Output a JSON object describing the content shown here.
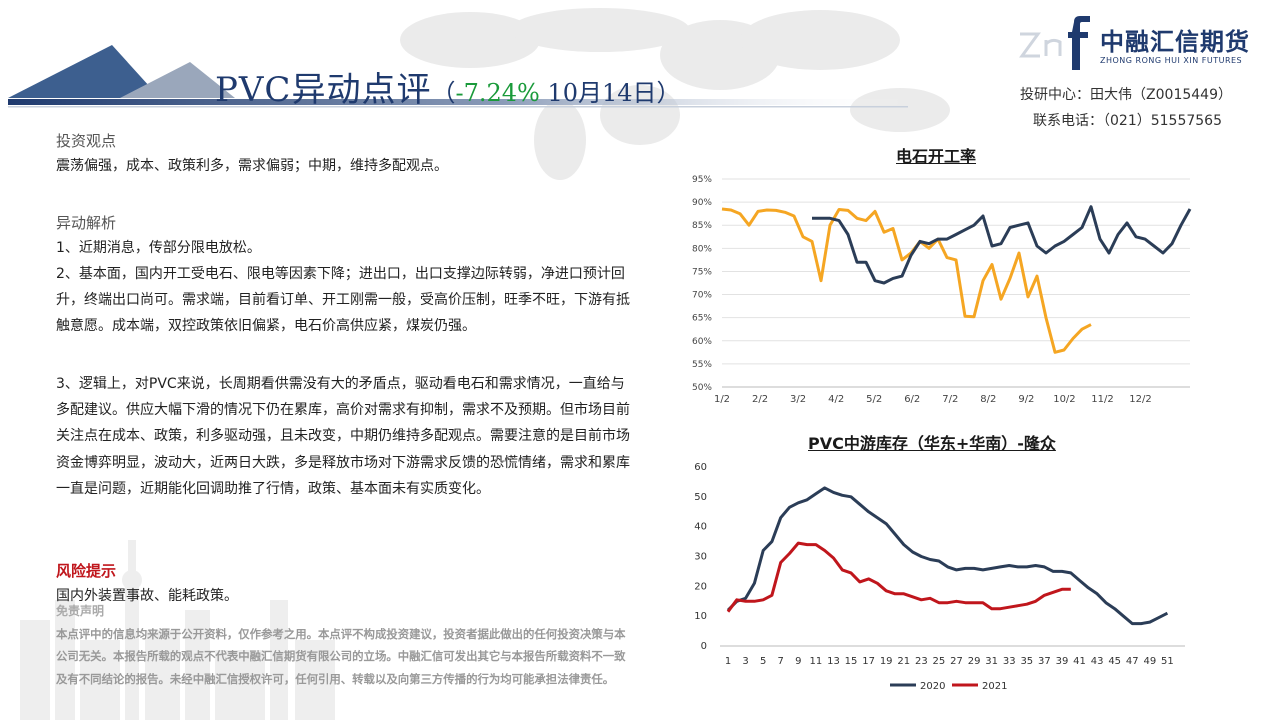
{
  "header": {
    "title_main": "PVC异动点评",
    "title_open": "（",
    "title_change": "-7.24%",
    "title_date": " 10月14日）"
  },
  "logo": {
    "cn": "中融汇信期货",
    "en": "ZHONG RONG HUI XIN FUTURES"
  },
  "contact": {
    "research": "投研中心：田大伟（Z0015449）",
    "phone": "联系电话：（021）51557565"
  },
  "sections": {
    "view_title": "投资观点",
    "view_text": "震荡偏强，成本、政策利多，需求偏弱；中期，维持多配观点。",
    "analysis_title": "异动解析",
    "points": [
      "1、近期消息，传部分限电放松。",
      "2、基本面，国内开工受电石、限电等因素下降；进出口，出口支撑边际转弱，净进口预计回升，终端出口尚可。需求端，目前看订单、开工刚需一般，受高价压制，旺季不旺，下游有抵触意愿。成本端，双控政策依旧偏紧，电石价高供应紧，煤炭仍强。",
      "3、逻辑上，对PVC来说，长周期看供需没有大的矛盾点，驱动看电石和需求情况，一直给与多配建议。供应大幅下滑的情况下仍在累库，高价对需求有抑制，需求不及预期。但市场目前关注点在成本、政策，利多驱动强，且未改变，中期仍维持多配观点。需要注意的是目前市场资金博弈明显，波动大，近两日大跌，多是释放市场对下游需求反馈的恐慌情绪，需求和累库一直是问题，近期能化回调助推了行情，政策、基本面未有实质变化。"
    ],
    "risk_title": "风险提示",
    "risk_text": "国内外装置事故、能耗政策。",
    "disclaimer_title": "免责声明",
    "disclaimer_text": "本点评中的信息均来源于公开资料，仅作参考之用。本点评不构成投资建议，投资者据此做出的任何投资决策与本公司无关。本报告所载的观点不代表中融汇信期货有限公司的立场。中融汇信可发出其它与本报告所载资料不一致及有不同结论的报告。未经中融汇信授权许可，任何引用、转载以及向第三方传播的行为均可能承担法律责任。"
  },
  "colors": {
    "navy": "#1f3a6e",
    "series_dark": "#2b3d57",
    "series_orange": "#f5a623",
    "series_red": "#c0161c",
    "green": "#1a9a3a"
  },
  "chart_data": [
    {
      "type": "line",
      "title": "电石开工率",
      "x_ticks": [
        "1/2",
        "2/2",
        "3/2",
        "4/2",
        "5/2",
        "6/2",
        "7/2",
        "8/2",
        "9/2",
        "10/2",
        "11/2",
        "12/2"
      ],
      "y_ticks": [
        "50%",
        "55%",
        "60%",
        "65%",
        "70%",
        "75%",
        "80%",
        "85%",
        "90%",
        "95%"
      ],
      "ylim": [
        50,
        95
      ],
      "grid": true,
      "legend": "none",
      "series": [
        {
          "color": "#f5a623",
          "points": [
            [
              0,
              88.5
            ],
            [
              1,
              88.3
            ],
            [
              2,
              87.5
            ],
            [
              3,
              85
            ],
            [
              4,
              88
            ],
            [
              5,
              88.3
            ],
            [
              6,
              88.2
            ],
            [
              7,
              87.8
            ],
            [
              8,
              87
            ],
            [
              9,
              82.5
            ],
            [
              10,
              81.5
            ],
            [
              11,
              73
            ],
            [
              12,
              85
            ],
            [
              13,
              88.4
            ],
            [
              14,
              88.2
            ],
            [
              15,
              86.5
            ],
            [
              16,
              86
            ],
            [
              17,
              88
            ],
            [
              18,
              83.5
            ],
            [
              19,
              84.3
            ],
            [
              20,
              77.5
            ],
            [
              21,
              79
            ],
            [
              22,
              81.5
            ],
            [
              23,
              80
            ],
            [
              24,
              82
            ],
            [
              25,
              78
            ],
            [
              26,
              77.5
            ],
            [
              27,
              65.3
            ],
            [
              28,
              65.2
            ],
            [
              29,
              73
            ],
            [
              30,
              76.5
            ],
            [
              31,
              69
            ],
            [
              32,
              73.5
            ],
            [
              33,
              79
            ],
            [
              34,
              69.5
            ],
            [
              35,
              74
            ],
            [
              36,
              65
            ],
            [
              37,
              57.5
            ],
            [
              38,
              58
            ],
            [
              39,
              60.5
            ],
            [
              40,
              62.5
            ],
            [
              41,
              63.5
            ]
          ]
        },
        {
          "color": "#2b3d57",
          "points": [
            [
              10,
              86.5
            ],
            [
              11,
              86.5
            ],
            [
              12,
              86.5
            ],
            [
              13,
              86
            ],
            [
              14,
              83
            ],
            [
              15,
              77
            ],
            [
              16,
              77
            ],
            [
              17,
              73
            ],
            [
              18,
              72.5
            ],
            [
              19,
              73.5
            ],
            [
              20,
              74
            ],
            [
              21,
              78.5
            ],
            [
              22,
              81.5
            ],
            [
              23,
              81
            ],
            [
              24,
              82
            ],
            [
              25,
              82
            ],
            [
              26,
              83
            ],
            [
              27,
              84
            ],
            [
              28,
              85
            ],
            [
              29,
              87
            ],
            [
              30,
              80.5
            ],
            [
              31,
              81
            ],
            [
              32,
              84.5
            ],
            [
              33,
              85
            ],
            [
              34,
              85.5
            ],
            [
              35,
              80.5
            ],
            [
              36,
              79
            ],
            [
              37,
              80.5
            ],
            [
              38,
              81.5
            ],
            [
              39,
              83
            ],
            [
              40,
              84.5
            ],
            [
              41,
              89
            ],
            [
              42,
              82
            ],
            [
              43,
              79
            ],
            [
              44,
              83
            ],
            [
              45,
              85.5
            ],
            [
              46,
              82.5
            ],
            [
              47,
              82
            ],
            [
              48,
              80.5
            ],
            [
              49,
              79
            ],
            [
              50,
              81
            ],
            [
              51,
              85
            ],
            [
              52,
              88.5
            ]
          ]
        }
      ]
    },
    {
      "type": "line",
      "title": "PVC中游库存（华东+华南）-隆众",
      "x_ticks": [
        "1",
        "3",
        "5",
        "7",
        "9",
        "11",
        "13",
        "15",
        "17",
        "19",
        "21",
        "23",
        "25",
        "27",
        "29",
        "31",
        "33",
        "35",
        "37",
        "39",
        "41",
        "43",
        "45",
        "47",
        "49",
        "51"
      ],
      "y_ticks": [
        "0",
        "10",
        "20",
        "30",
        "40",
        "50",
        "60"
      ],
      "ylim": [
        0,
        60
      ],
      "grid": false,
      "legend": "bottom",
      "series": [
        {
          "name": "2020",
          "color": "#2b3d57",
          "points": [
            [
              1,
              12
            ],
            [
              2,
              15
            ],
            [
              3,
              16
            ],
            [
              4,
              21
            ],
            [
              5,
              32
            ],
            [
              6,
              35
            ],
            [
              7,
              43
            ],
            [
              8,
              46.5
            ],
            [
              9,
              48
            ],
            [
              10,
              49
            ],
            [
              11,
              51
            ],
            [
              12,
              53
            ],
            [
              13,
              51.5
            ],
            [
              14,
              50.5
            ],
            [
              15,
              50
            ],
            [
              16,
              47.5
            ],
            [
              17,
              45
            ],
            [
              18,
              43
            ],
            [
              19,
              41
            ],
            [
              20,
              37.5
            ],
            [
              21,
              34
            ],
            [
              22,
              31.5
            ],
            [
              23,
              30
            ],
            [
              24,
              29
            ],
            [
              25,
              28.5
            ],
            [
              26,
              26.5
            ],
            [
              27,
              25.5
            ],
            [
              28,
              26
            ],
            [
              29,
              26
            ],
            [
              30,
              25.5
            ],
            [
              31,
              26
            ],
            [
              32,
              26.5
            ],
            [
              33,
              27
            ],
            [
              34,
              26.5
            ],
            [
              35,
              26.5
            ],
            [
              36,
              27
            ],
            [
              37,
              26.5
            ],
            [
              38,
              25
            ],
            [
              39,
              25
            ],
            [
              40,
              24.5
            ],
            [
              41,
              22
            ],
            [
              42,
              19.5
            ],
            [
              43,
              17.5
            ],
            [
              44,
              14.5
            ],
            [
              45,
              12.5
            ],
            [
              46,
              10
            ],
            [
              47,
              7.5
            ],
            [
              48,
              7.5
            ],
            [
              49,
              8
            ],
            [
              50,
              9.5
            ],
            [
              51,
              11
            ]
          ]
        },
        {
          "name": "2021",
          "color": "#c0161c",
          "points": [
            [
              1,
              11.5
            ],
            [
              2,
              15.5
            ],
            [
              3,
              15
            ],
            [
              4,
              15
            ],
            [
              5,
              15.5
            ],
            [
              6,
              17
            ],
            [
              7,
              28
            ],
            [
              8,
              31
            ],
            [
              9,
              34.5
            ],
            [
              10,
              34
            ],
            [
              11,
              34
            ],
            [
              12,
              32
            ],
            [
              13,
              29.5
            ],
            [
              14,
              25.5
            ],
            [
              15,
              24.5
            ],
            [
              16,
              21.5
            ],
            [
              17,
              22.5
            ],
            [
              18,
              21
            ],
            [
              19,
              18.5
            ],
            [
              20,
              17.5
            ],
            [
              21,
              17.5
            ],
            [
              22,
              16.5
            ],
            [
              23,
              15.5
            ],
            [
              24,
              16
            ],
            [
              25,
              14.5
            ],
            [
              26,
              14.5
            ],
            [
              27,
              15
            ],
            [
              28,
              14.5
            ],
            [
              29,
              14.5
            ],
            [
              30,
              14.5
            ],
            [
              31,
              12.5
            ],
            [
              32,
              12.5
            ],
            [
              33,
              13
            ],
            [
              34,
              13.5
            ],
            [
              35,
              14
            ],
            [
              36,
              15
            ],
            [
              37,
              17
            ],
            [
              38,
              18
            ],
            [
              39,
              19
            ],
            [
              40,
              19
            ]
          ]
        }
      ]
    }
  ]
}
